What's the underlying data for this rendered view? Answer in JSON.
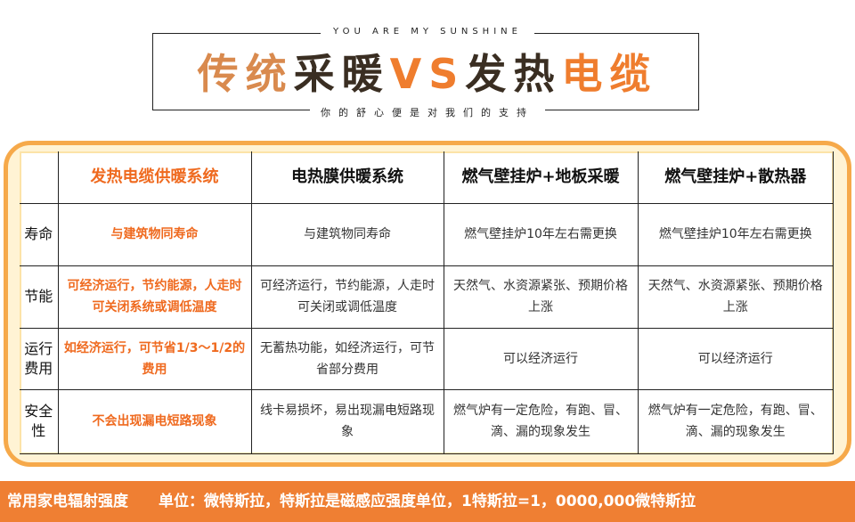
{
  "header": {
    "tagline": "YOU ARE MY SUNSHINE",
    "title_parts": [
      "传统",
      "采暖",
      "VS",
      "发热",
      "电缆"
    ],
    "subtitle": "你的舒心便是对我们的支持"
  },
  "table": {
    "columns": [
      "",
      "发热电缆供暖系统",
      "电热膜供暖系统",
      "燃气壁挂炉+地板采暖",
      "燃气壁挂炉+散热器"
    ],
    "rows": [
      {
        "label": "寿命",
        "cells": [
          "与建筑物同寿命",
          "与建筑物同寿命",
          "燃气壁挂炉10年左右需更换",
          "燃气壁挂炉10年左右需更换"
        ]
      },
      {
        "label": "节能",
        "cells": [
          "可经济运行，节约能源，人走时可关闭系统或调低温度",
          "可经济运行，节约能源，人走时可关闭或调低温度",
          "天然气、水资源紧张、预期价格上涨",
          "天然气、水资源紧张、预期价格上涨"
        ]
      },
      {
        "label": "运行费用",
        "cells": [
          "如经济运行，可节省1/3～1/2的费用",
          "无蓄热功能，如经济运行，可节省部分费用",
          "可以经济运行",
          "可以经济运行"
        ]
      },
      {
        "label": "安全性",
        "cells": [
          "不会出现漏电短路现象",
          "线卡易损坏，易出现漏电短路现象",
          "燃气炉有一定危险，有跑、冒、滴、漏的现象发生",
          "燃气炉有一定危险，有跑、冒、滴、漏的现象发生"
        ]
      }
    ]
  },
  "footer": {
    "title": "常用家电辐射强度",
    "unit": "单位：微特斯拉，特斯拉是磁感应强度单位，1特斯拉=1，0000,000微特斯拉"
  },
  "colors": {
    "accent": "#ef7f33",
    "highlight": "#ef6a1f",
    "frame": "#f6a94a"
  }
}
